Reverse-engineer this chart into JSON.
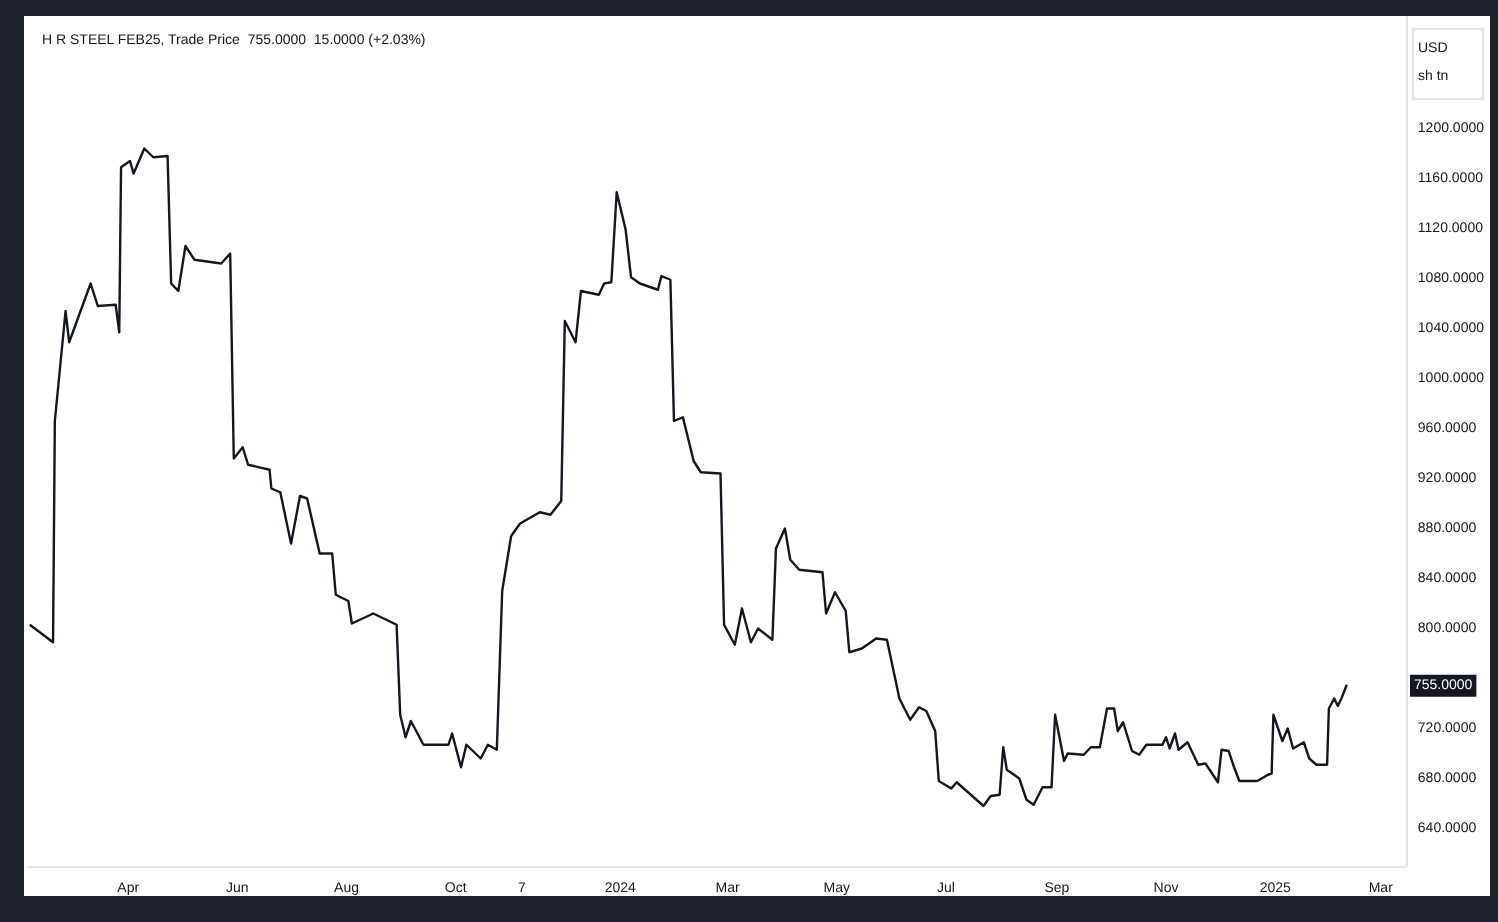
{
  "chart_data": {
    "type": "line",
    "title": "H R STEEL FEB25, Trade Price  755.0000  15.0000 (+2.03%)",
    "ylabel": "USD\nsh tn",
    "x": [
      "2023-02-05",
      "2023-02-18",
      "2023-02-19",
      "2023-02-25",
      "2023-02-27",
      "2023-03-11",
      "2023-03-15",
      "2023-03-25",
      "2023-03-27",
      "2023-03-28",
      "2023-04-02",
      "2023-04-04",
      "2023-04-10",
      "2023-04-15",
      "2023-04-23",
      "2023-04-25",
      "2023-04-29",
      "2023-05-03",
      "2023-05-08",
      "2023-05-23",
      "2023-05-28",
      "2023-05-30",
      "2023-06-04",
      "2023-06-07",
      "2023-06-19",
      "2023-06-20",
      "2023-06-25",
      "2023-07-01",
      "2023-07-06",
      "2023-07-10",
      "2023-07-17",
      "2023-07-24",
      "2023-07-26",
      "2023-08-02",
      "2023-08-04",
      "2023-08-16",
      "2023-08-29",
      "2023-08-31",
      "2023-09-03",
      "2023-09-06",
      "2023-09-13",
      "2023-09-27",
      "2023-09-29",
      "2023-10-04",
      "2023-10-07",
      "2023-10-15",
      "2023-10-19",
      "2023-10-24",
      "2023-10-27",
      "2023-11-01",
      "2023-11-06",
      "2023-11-17",
      "2023-11-23",
      "2023-11-29",
      "2023-12-01",
      "2023-12-07",
      "2023-12-10",
      "2023-12-20",
      "2023-12-23",
      "2023-12-27",
      "2023-12-30",
      "2024-01-04",
      "2024-01-07",
      "2024-01-12",
      "2024-01-22",
      "2024-01-24",
      "2024-01-29",
      "2024-01-31",
      "2024-02-05",
      "2024-02-11",
      "2024-02-15",
      "2024-02-26",
      "2024-02-28",
      "2024-03-05",
      "2024-03-09",
      "2024-03-14",
      "2024-03-18",
      "2024-03-26",
      "2024-03-28",
      "2024-04-02",
      "2024-04-05",
      "2024-04-10",
      "2024-04-23",
      "2024-04-25",
      "2024-04-30",
      "2024-05-06",
      "2024-05-08",
      "2024-05-15",
      "2024-05-23",
      "2024-05-29",
      "2024-06-05",
      "2024-06-11",
      "2024-06-16",
      "2024-06-20",
      "2024-06-25",
      "2024-06-27",
      "2024-07-04",
      "2024-07-07",
      "2024-07-22",
      "2024-07-26",
      "2024-07-31",
      "2024-08-02",
      "2024-08-04",
      "2024-08-11",
      "2024-08-15",
      "2024-08-19",
      "2024-08-24",
      "2024-08-29",
      "2024-08-31",
      "2024-09-05",
      "2024-09-07",
      "2024-09-16",
      "2024-09-20",
      "2024-09-25",
      "2024-09-29",
      "2024-10-03",
      "2024-10-05",
      "2024-10-08",
      "2024-10-13",
      "2024-10-17",
      "2024-10-21",
      "2024-10-30",
      "2024-11-01",
      "2024-11-03",
      "2024-11-06",
      "2024-11-08",
      "2024-11-13",
      "2024-11-19",
      "2024-11-23",
      "2024-11-30",
      "2024-12-02",
      "2024-12-06",
      "2024-12-09",
      "2024-12-12",
      "2024-12-22",
      "2024-12-28",
      "2024-12-30",
      "2024-12-31",
      "2025-01-05",
      "2025-01-08",
      "2025-01-11",
      "2025-01-17",
      "2025-01-20",
      "2025-01-24",
      "2025-01-30",
      "2025-01-31",
      "2025-02-03",
      "2025-02-05",
      "2025-02-07",
      "2025-02-10"
    ],
    "series": [
      {
        "color": "#131722",
        "values": [
          803,
          789,
          966,
          1054,
          1029,
          1076,
          1058,
          1059,
          1037,
          1169,
          1174,
          1164,
          1184,
          1177,
          1178,
          1076,
          1070,
          1106,
          1095,
          1092,
          1100,
          936,
          945,
          931,
          927,
          912,
          909,
          868,
          906,
          904,
          860,
          860,
          827,
          822,
          804,
          812,
          803,
          731,
          713,
          726,
          707,
          707,
          716,
          689,
          707,
          696,
          707,
          703,
          830,
          874,
          884,
          893,
          891,
          902,
          1046,
          1029,
          1070,
          1067,
          1076,
          1077,
          1149,
          1119,
          1081,
          1076,
          1071,
          1082,
          1079,
          966,
          969,
          934,
          925,
          924,
          803,
          787,
          816,
          789,
          800,
          791,
          864,
          880,
          855,
          847,
          845,
          812,
          829,
          814,
          781,
          784,
          792,
          791,
          744,
          727,
          737,
          734,
          718,
          678,
          672,
          677,
          658,
          666,
          667,
          705,
          687,
          680,
          663,
          659,
          673,
          673,
          731,
          694,
          700,
          699,
          705,
          705,
          736,
          736,
          718,
          725,
          702,
          699,
          707,
          707,
          713,
          704,
          716,
          703,
          709,
          691,
          692,
          677,
          703,
          702,
          689,
          678,
          678,
          683,
          684,
          731,
          710,
          720,
          704,
          709,
          696,
          691,
          691,
          736,
          744,
          738,
          744,
          755
        ]
      }
    ],
    "xlim": [
      "2023-02-04",
      "2025-03-15"
    ],
    "xticks": [
      {
        "value": "2023-04-01",
        "label": "Apr"
      },
      {
        "value": "2023-06-01",
        "label": "Jun"
      },
      {
        "value": "2023-08-01",
        "label": "Aug"
      },
      {
        "value": "2023-10-01",
        "label": "Oct"
      },
      {
        "value": "2023-11-07",
        "label": "7"
      },
      {
        "value": "2024-01-01",
        "label": "2024"
      },
      {
        "value": "2024-03-01",
        "label": "Mar"
      },
      {
        "value": "2024-05-01",
        "label": "May"
      },
      {
        "value": "2024-07-01",
        "label": "Jul"
      },
      {
        "value": "2024-09-01",
        "label": "Sep"
      },
      {
        "value": "2024-11-01",
        "label": "Nov"
      },
      {
        "value": "2025-01-01",
        "label": "2025"
      },
      {
        "value": "2025-03-01",
        "label": "Mar"
      }
    ],
    "ylim": [
      610,
      1290
    ],
    "yticks": [
      {
        "value": 640,
        "label": "640.0000"
      },
      {
        "value": 680,
        "label": "680.0000"
      },
      {
        "value": 720,
        "label": "720.0000"
      },
      {
        "value": 800,
        "label": "800.0000"
      },
      {
        "value": 840,
        "label": "840.0000"
      },
      {
        "value": 880,
        "label": "880.0000"
      },
      {
        "value": 920,
        "label": "920.0000"
      },
      {
        "value": 960,
        "label": "960.0000"
      },
      {
        "value": 1000,
        "label": "1000.0000"
      },
      {
        "value": 1040,
        "label": "1040.0000"
      },
      {
        "value": 1080,
        "label": "1080.0000"
      },
      {
        "value": 1120,
        "label": "1120.0000"
      },
      {
        "value": 1160,
        "label": "1160.0000"
      },
      {
        "value": 1200,
        "label": "1200.0000"
      }
    ],
    "annotations": [
      "755.0000"
    ],
    "grid": false,
    "marker": "none",
    "line_style": "solid"
  }
}
